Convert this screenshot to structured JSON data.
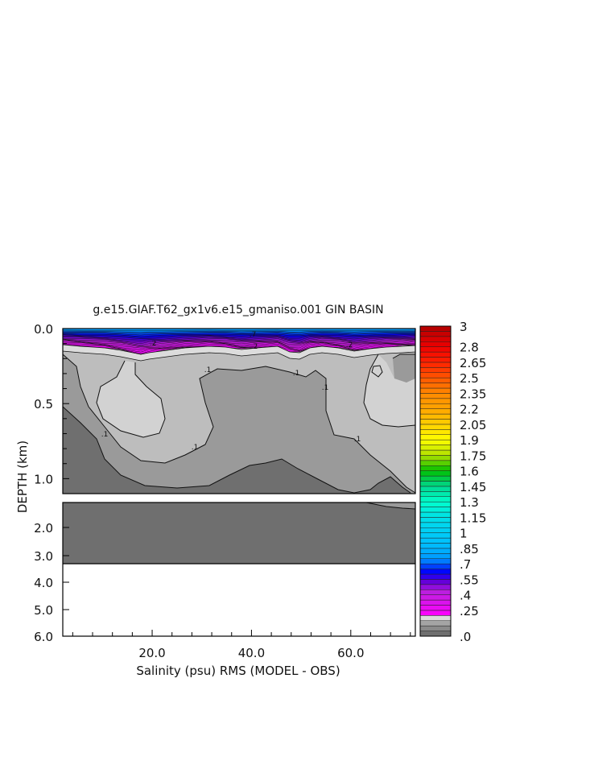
{
  "chart_data": {
    "type": "heatmap",
    "title": "g.e15.GIAF.T62_gx1v6.e15_gmaniso.001 GIN BASIN",
    "xlabel": "Salinity (psu) RMS (MODEL - OBS)",
    "ylabel": "DEPTH (km)",
    "x_ticks": [
      "20.0",
      "40.0",
      "60.0"
    ],
    "x_tick_values": [
      20,
      40,
      60
    ],
    "xlim": [
      2,
      73
    ],
    "upper_panel": {
      "ylim": [
        0.0,
        1.1
      ],
      "y_ticks": [
        "0.0",
        "0.5",
        "1.0"
      ],
      "y_tick_values": [
        0.0,
        0.5,
        1.0
      ]
    },
    "lower_panel": {
      "ylim": [
        1.1,
        6.0
      ],
      "y_ticks": [
        "2.0",
        "3.0",
        "4.0",
        "5.0",
        "6.0"
      ],
      "y_tick_values": [
        2.0,
        3.0,
        4.0,
        5.0,
        6.0
      ]
    },
    "colorbar": {
      "labels": [
        "3",
        "2.8",
        "2.65",
        "2.5",
        "2.35",
        "2.2",
        "2.05",
        "1.9",
        "1.75",
        "1.6",
        "1.45",
        "1.3",
        "1.15",
        "1",
        ".85",
        ".7",
        ".55",
        ".4",
        ".25",
        ".0"
      ],
      "label_values": [
        3.0,
        2.8,
        2.65,
        2.5,
        2.35,
        2.2,
        2.05,
        1.9,
        1.75,
        1.6,
        1.45,
        1.3,
        1.15,
        1.0,
        0.85,
        0.7,
        0.55,
        0.4,
        0.25,
        0.0
      ],
      "range": [
        0.0,
        3.0
      ]
    },
    "contour_labels": [
      ".7",
      ".2",
      ".2",
      ".2",
      ".1",
      ".1",
      ".1",
      ".1",
      ".1",
      ".1"
    ],
    "bottom_depth_km": 3.35,
    "grid": false
  }
}
